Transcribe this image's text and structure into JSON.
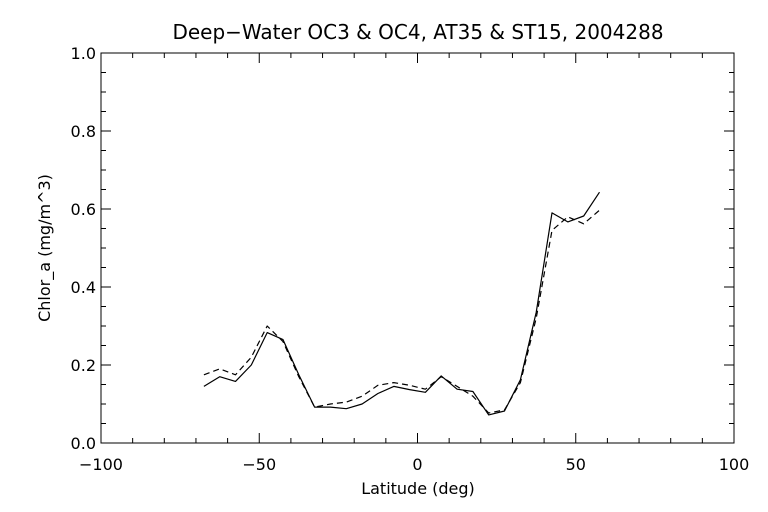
{
  "chart_data": {
    "type": "line",
    "title": "Deep−Water OC3 & OC4, AT35 & ST15, 2004288",
    "xlabel": "Latitude (deg)",
    "ylabel": "Chlor_a (mg/m^3)",
    "xlim": [
      -100,
      100
    ],
    "ylim": [
      0.0,
      1.0
    ],
    "xticks": [
      -100,
      -50,
      0,
      50,
      100
    ],
    "xtick_labels": [
      "−100",
      "−50",
      "0",
      "50",
      "100"
    ],
    "yticks": [
      0.0,
      0.2,
      0.4,
      0.6,
      0.8,
      1.0
    ],
    "ytick_labels": [
      "0.0",
      "0.2",
      "0.4",
      "0.6",
      "0.8",
      "1.0"
    ],
    "grid": false,
    "series": [
      {
        "style": "solid",
        "color": "#000000",
        "x": [
          -67.5,
          -62.5,
          -57.5,
          -52.5,
          -47.5,
          -42.5,
          -37.5,
          -32.5,
          -27.5,
          -22.5,
          -17.5,
          -12.5,
          -7.5,
          -2.5,
          2.5,
          7.5,
          12.5,
          17.5,
          22.5,
          27.5,
          32.5,
          37.5,
          42.5,
          47.5,
          52.5,
          57.5
        ],
        "y": [
          0.145,
          0.17,
          0.158,
          0.2,
          0.283,
          0.265,
          0.175,
          0.092,
          0.092,
          0.088,
          0.1,
          0.127,
          0.145,
          0.137,
          0.13,
          0.172,
          0.138,
          0.132,
          0.072,
          0.082,
          0.162,
          0.335,
          0.59,
          0.567,
          0.582,
          0.643
        ]
      },
      {
        "style": "dashed",
        "color": "#000000",
        "x": [
          -67.5,
          -62.5,
          -57.5,
          -52.5,
          -47.5,
          -42.5,
          -37.5,
          -32.5,
          -27.5,
          -22.5,
          -17.5,
          -12.5,
          -7.5,
          -2.5,
          2.5,
          7.5,
          12.5,
          17.5,
          22.5,
          27.5,
          32.5,
          37.5,
          42.5,
          47.5,
          52.5,
          57.5
        ],
        "y": [
          0.175,
          0.19,
          0.175,
          0.22,
          0.3,
          0.26,
          0.17,
          0.092,
          0.1,
          0.105,
          0.12,
          0.148,
          0.155,
          0.148,
          0.138,
          0.17,
          0.145,
          0.12,
          0.077,
          0.085,
          0.155,
          0.32,
          0.545,
          0.58,
          0.562,
          0.597
        ]
      }
    ]
  }
}
